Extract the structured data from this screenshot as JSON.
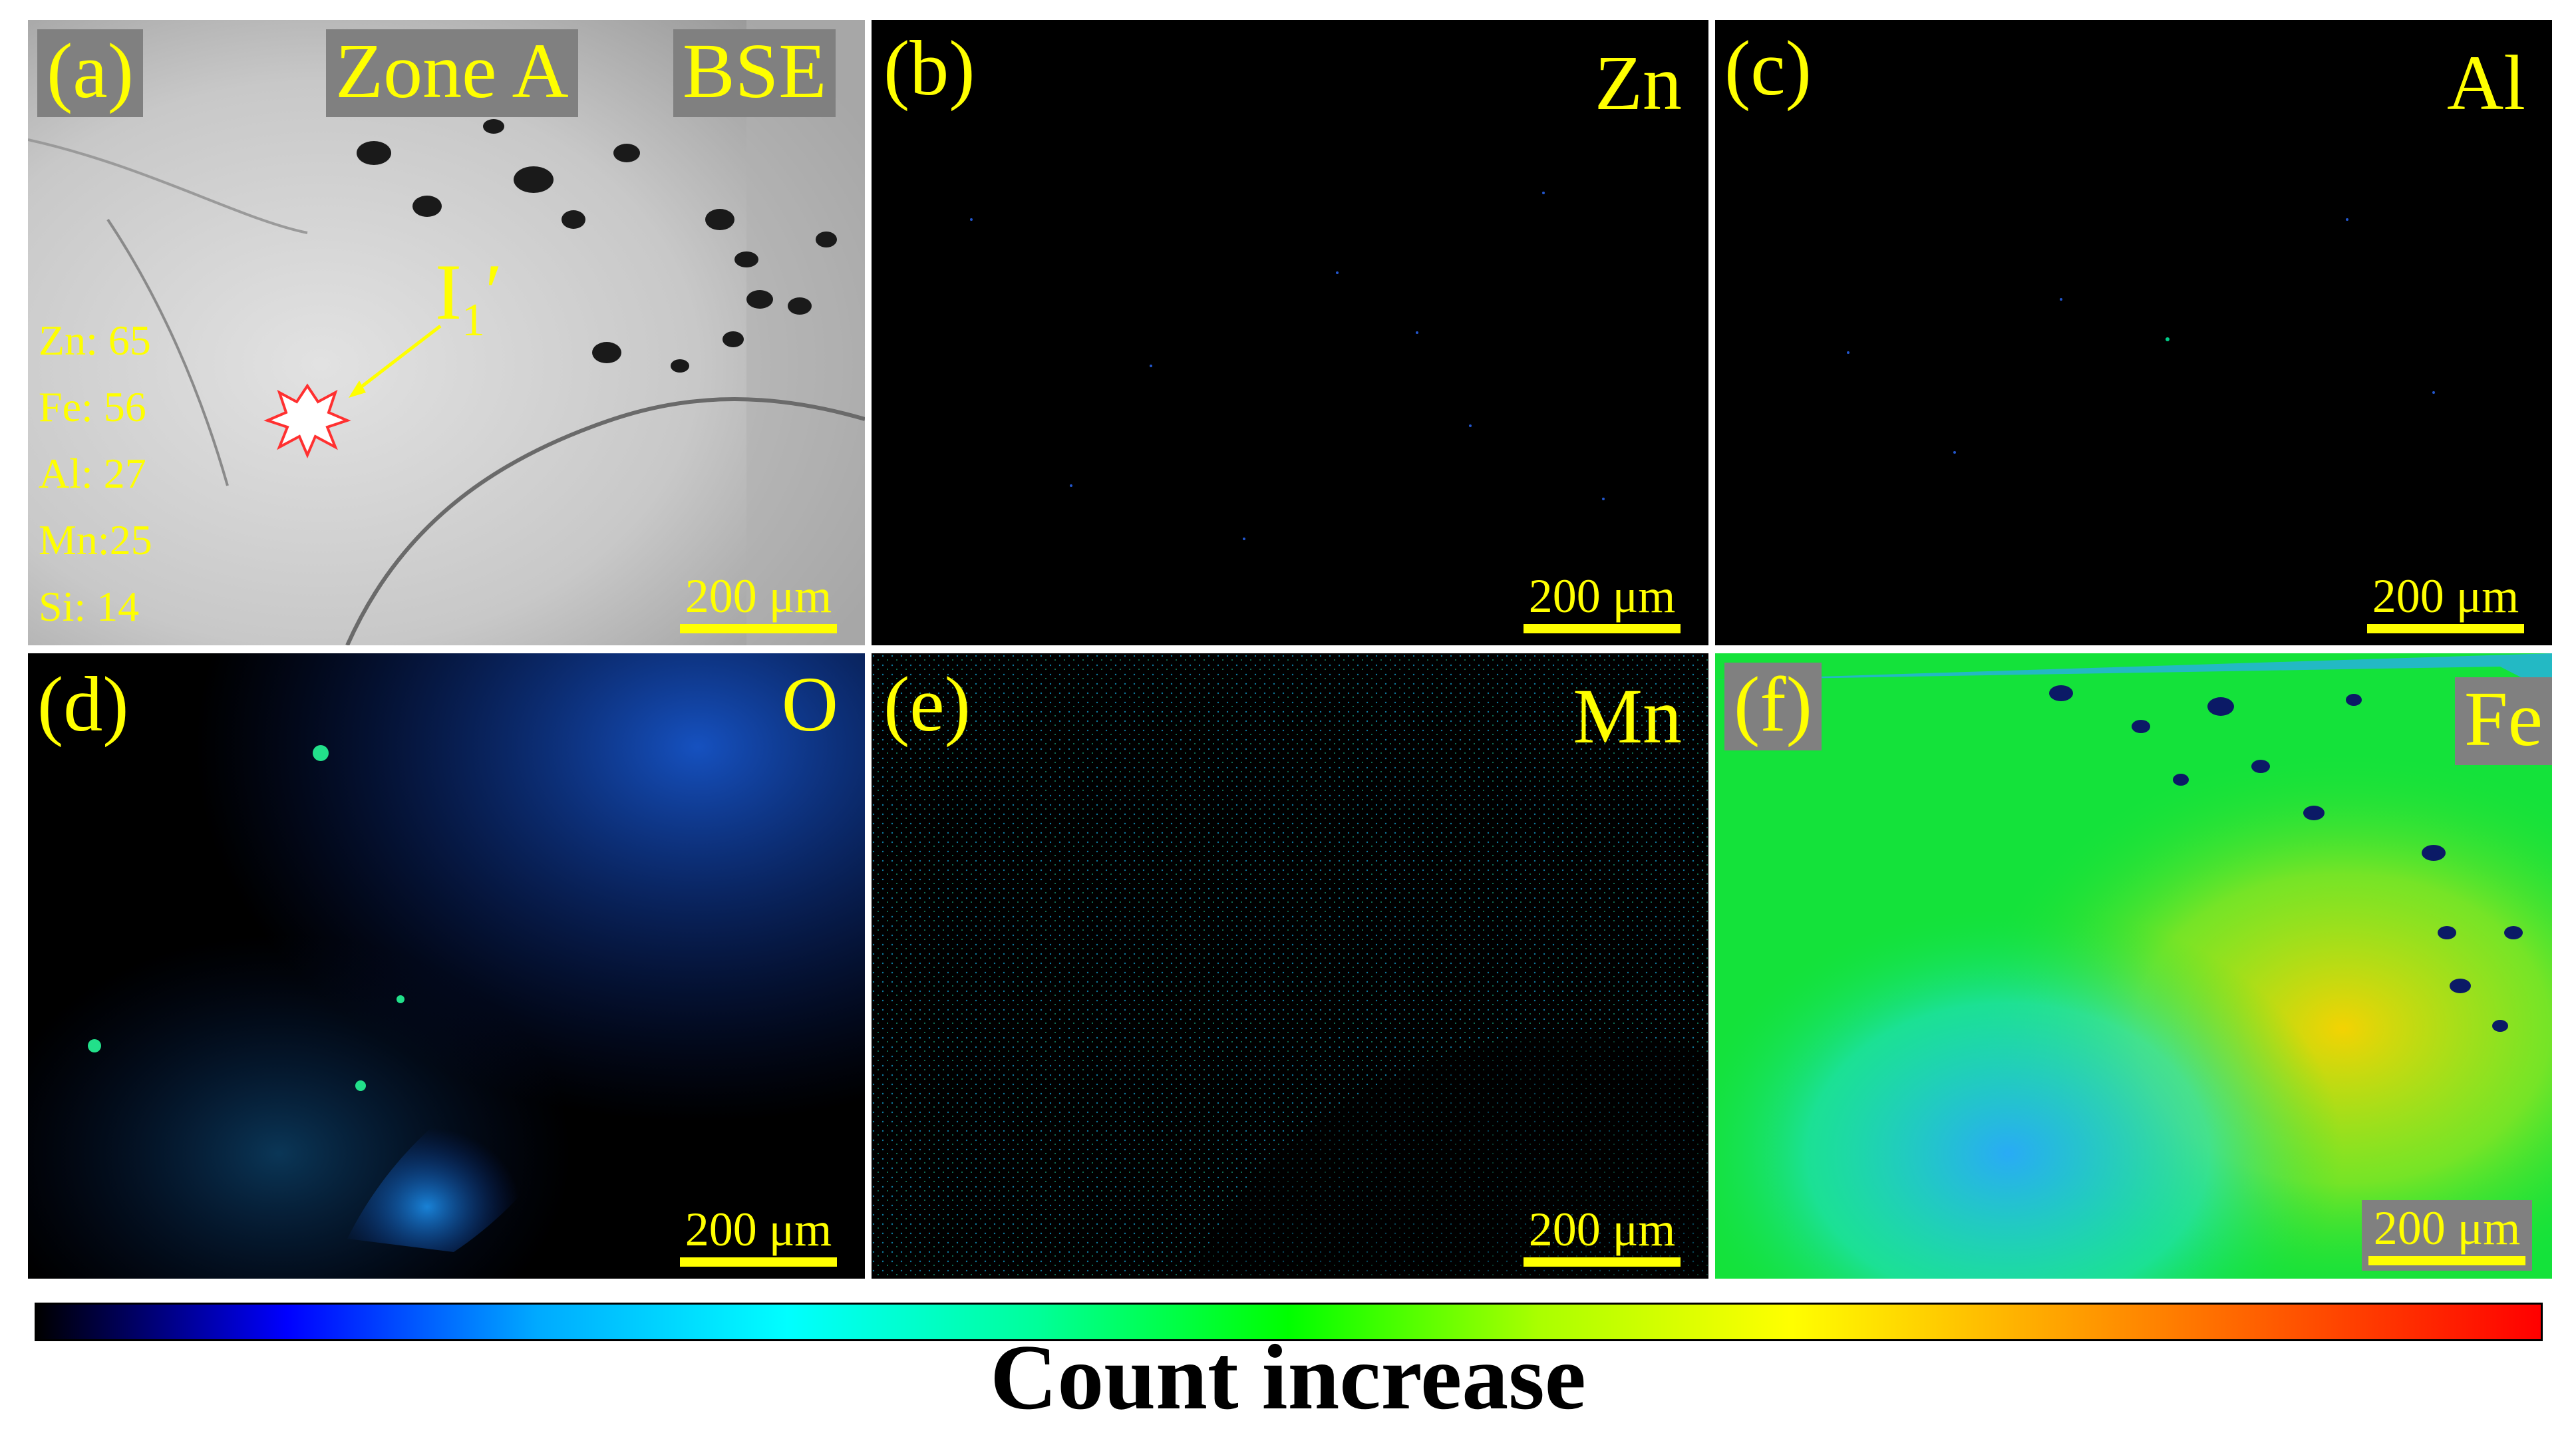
{
  "figure": {
    "panels": [
      {
        "id": "a",
        "label": "(a)",
        "title": "Zone A",
        "mode": "BSE",
        "scale": "200 μm"
      },
      {
        "id": "b",
        "label": "(b)",
        "element": "Zn",
        "scale": "200 μm"
      },
      {
        "id": "c",
        "label": "(c)",
        "element": "Al",
        "scale": "200 μm"
      },
      {
        "id": "d",
        "label": "(d)",
        "element": "O",
        "scale": "200 μm"
      },
      {
        "id": "e",
        "label": "(e)",
        "element": "Mn",
        "scale": "200 μm"
      },
      {
        "id": "f",
        "label": "(f)",
        "element": "Fe",
        "scale": "200 μm"
      }
    ],
    "callout": {
      "main": "I",
      "sub": "1",
      "prime": "′"
    },
    "element_list": [
      "Zn: 65",
      "Fe: 56",
      "Al: 27",
      "Mn:25",
      "Si: 14"
    ],
    "colorbar": {
      "caption": "Count increase",
      "colors": [
        "#000000",
        "#0000ff",
        "#00aaff",
        "#00ffff",
        "#00ff99",
        "#00ff00",
        "#aaff00",
        "#ffff00",
        "#ffaa00",
        "#ff5500",
        "#ff0000"
      ]
    }
  }
}
